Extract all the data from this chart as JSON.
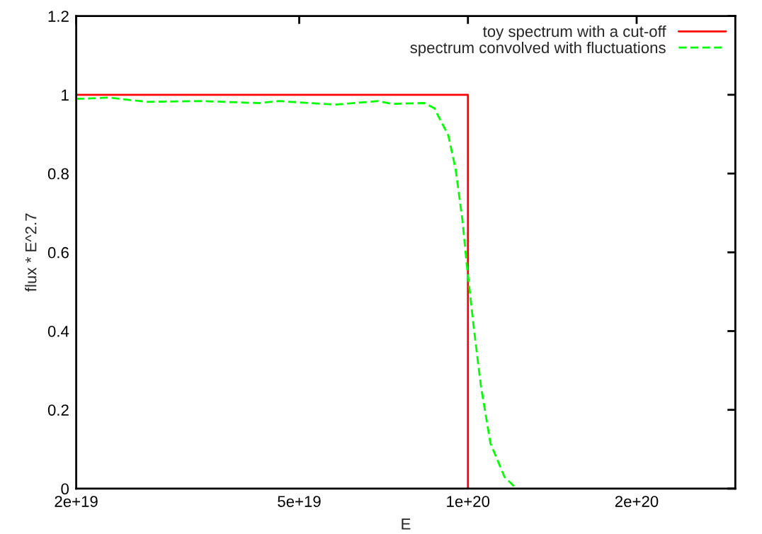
{
  "chart_data": {
    "type": "line",
    "xlabel": "E",
    "ylabel": "flux * E^2.7",
    "log": "x",
    "xlim": [
      2e+19,
      3e+20
    ],
    "xticks": [
      {
        "value": 2e+19,
        "label": "2e+19"
      },
      {
        "value": 5e+19,
        "label": "5e+19"
      },
      {
        "value": 1e+20,
        "label": "1e+20"
      },
      {
        "value": 2e+20,
        "label": "2e+20"
      }
    ],
    "ylim": [
      0,
      1.2
    ],
    "yticks": [
      0,
      0.2,
      0.4,
      0.6,
      0.8,
      1,
      1.2
    ],
    "grid": false,
    "legend": "top right",
    "series": [
      {
        "name": "toy spectrum with a cut-off",
        "color": "#ff0000",
        "line_style": "solid",
        "x": [
          2e+19,
          1e+20,
          1e+20
        ],
        "values": [
          1,
          1,
          0
        ]
      },
      {
        "name": "spectrum convolved with fluctuations",
        "color": "#00ff00",
        "line_style": "dashed",
        "x": [
          2e+19,
          2.08e+19,
          2.29e+19,
          2.67e+19,
          3.36e+19,
          4.24e+19,
          4.6e+19,
          5.81e+19,
          6.91e+19,
          7.32e+19,
          8.36e+19,
          8.71e+19,
          9.23e+19,
          9.51e+19,
          9.78e+19,
          9.95e+19,
          1.026e+20,
          1.055e+20,
          1.097e+20,
          1.162e+20,
          1.22e+20
        ],
        "values": [
          0.99,
          0.99,
          0.993,
          0.982,
          0.984,
          0.979,
          0.984,
          0.975,
          0.984,
          0.977,
          0.979,
          0.966,
          0.896,
          0.81,
          0.68,
          0.571,
          0.4,
          0.26,
          0.115,
          0.03,
          0
        ]
      }
    ]
  }
}
